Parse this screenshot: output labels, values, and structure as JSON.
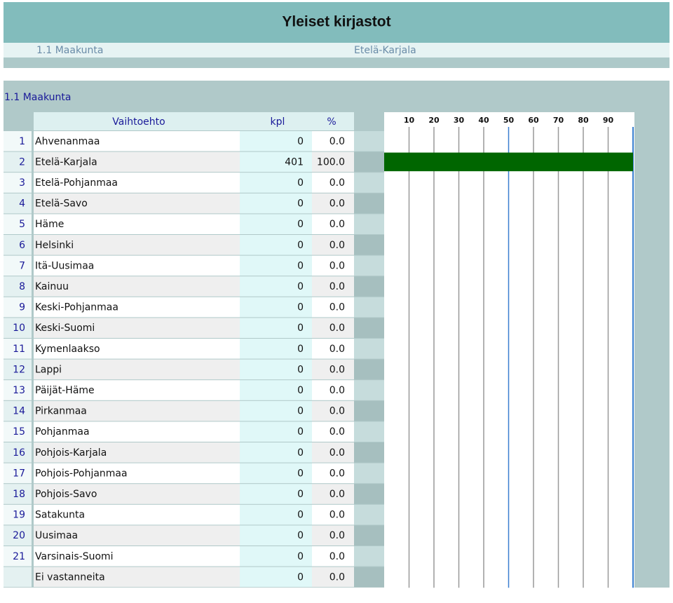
{
  "header": {
    "title": "Yleiset kirjastot",
    "subtitle_label": "1.1 Maakunta",
    "subtitle_value": "Etelä-Karjala"
  },
  "section": {
    "title": "1.1 Maakunta",
    "columns": [
      "Vaihtoehto",
      "kpl",
      "%"
    ],
    "chart": {
      "xlim": [
        0,
        100
      ],
      "xticks": [
        10,
        20,
        30,
        40,
        50,
        60,
        70,
        80,
        90
      ],
      "bar_color": "#006600"
    },
    "rows": [
      {
        "number": 1,
        "name": "Ahvenanmaa",
        "kpl": 0,
        "pct": {
          "value": 0,
          "label": "0.0"
        }
      },
      {
        "number": 2,
        "name": "Etelä-Karjala",
        "kpl": 401,
        "pct": {
          "value": 100,
          "label": "100.0"
        }
      },
      {
        "number": 3,
        "name": "Etelä-Pohjanmaa",
        "kpl": 0,
        "pct": {
          "value": 0,
          "label": "0.0"
        }
      },
      {
        "number": 4,
        "name": "Etelä-Savo",
        "kpl": 0,
        "pct": {
          "value": 0,
          "label": "0.0"
        }
      },
      {
        "number": 5,
        "name": "Häme",
        "kpl": 0,
        "pct": {
          "value": 0,
          "label": "0.0"
        }
      },
      {
        "number": 6,
        "name": "Helsinki",
        "kpl": 0,
        "pct": {
          "value": 0,
          "label": "0.0"
        }
      },
      {
        "number": 7,
        "name": "Itä-Uusimaa",
        "kpl": 0,
        "pct": {
          "value": 0,
          "label": "0.0"
        }
      },
      {
        "number": 8,
        "name": "Kainuu",
        "kpl": 0,
        "pct": {
          "value": 0,
          "label": "0.0"
        }
      },
      {
        "number": 9,
        "name": "Keski-Pohjanmaa",
        "kpl": 0,
        "pct": {
          "value": 0,
          "label": "0.0"
        }
      },
      {
        "number": 10,
        "name": "Keski-Suomi",
        "kpl": 0,
        "pct": {
          "value": 0,
          "label": "0.0"
        }
      },
      {
        "number": 11,
        "name": "Kymenlaakso",
        "kpl": 0,
        "pct": {
          "value": 0,
          "label": "0.0"
        }
      },
      {
        "number": 12,
        "name": "Lappi",
        "kpl": 0,
        "pct": {
          "value": 0,
          "label": "0.0"
        }
      },
      {
        "number": 13,
        "name": "Päijät-Häme",
        "kpl": 0,
        "pct": {
          "value": 0,
          "label": "0.0"
        }
      },
      {
        "number": 14,
        "name": "Pirkanmaa",
        "kpl": 0,
        "pct": {
          "value": 0,
          "label": "0.0"
        }
      },
      {
        "number": 15,
        "name": "Pohjanmaa",
        "kpl": 0,
        "pct": {
          "value": 0,
          "label": "0.0"
        }
      },
      {
        "number": 16,
        "name": "Pohjois-Karjala",
        "kpl": 0,
        "pct": {
          "value": 0,
          "label": "0.0"
        }
      },
      {
        "number": 17,
        "name": "Pohjois-Pohjanmaa",
        "kpl": 0,
        "pct": {
          "value": 0,
          "label": "0.0"
        }
      },
      {
        "number": 18,
        "name": "Pohjois-Savo",
        "kpl": 0,
        "pct": {
          "value": 0,
          "label": "0.0"
        }
      },
      {
        "number": 19,
        "name": "Satakunta",
        "kpl": 0,
        "pct": {
          "value": 0,
          "label": "0.0"
        }
      },
      {
        "number": 20,
        "name": "Uusimaa",
        "kpl": 0,
        "pct": {
          "value": 0,
          "label": "0.0"
        }
      },
      {
        "number": 21,
        "name": "Varsinais-Suomi",
        "kpl": 0,
        "pct": {
          "value": 0,
          "label": "0.0"
        }
      },
      {
        "number": null,
        "name": "Ei vastanneita",
        "kpl": 0,
        "pct": {
          "value": 0,
          "label": "0.0"
        }
      }
    ]
  }
}
